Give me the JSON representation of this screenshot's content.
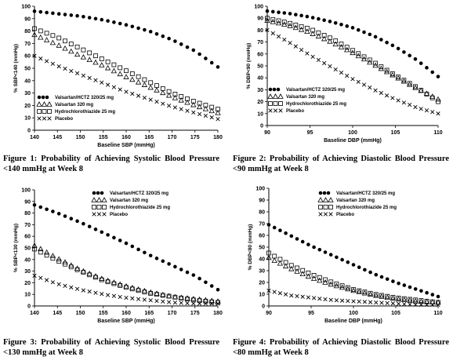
{
  "chart_data": [
    {
      "type": "scatter",
      "caption": "Figure 1: Probability of Achieving Systolic Blood Pressure <140 mmHg at Week 8",
      "xlabel": "Baseline SBP (mmHg)",
      "ylabel": "% SBP<140 (mmHg)",
      "xlim": [
        140,
        180
      ],
      "ylim": [
        0,
        100
      ],
      "x_ticks": [
        140,
        145,
        150,
        155,
        160,
        165,
        170,
        175,
        180
      ],
      "y_ticks": [
        0,
        10,
        20,
        30,
        40,
        50,
        60,
        70,
        80,
        90,
        100
      ],
      "legend_placement": "lower-left",
      "x": [
        140,
        145,
        150,
        155,
        160,
        165,
        170,
        175,
        180
      ],
      "series": [
        {
          "name": "Valsartan/HCTZ 320/25 mg",
          "marker": "dot",
          "values": [
            96,
            94,
            92,
            89,
            85,
            80,
            73,
            64,
            51
          ]
        },
        {
          "name": "Valsartan 320 mg",
          "marker": "triangle",
          "values": [
            77,
            69,
            60,
            52,
            43,
            35,
            27,
            20,
            14
          ]
        },
        {
          "name": "Hydrochlorothiazide 25 mg",
          "marker": "square",
          "values": [
            82,
            75,
            66,
            57,
            48,
            39,
            30,
            23,
            17
          ]
        },
        {
          "name": "Placebo",
          "marker": "x",
          "values": [
            60,
            52,
            45,
            38,
            31,
            25,
            19,
            14,
            9
          ]
        }
      ]
    },
    {
      "type": "scatter",
      "caption": "Figure 2: Probability of Achieving Diastolic Blood Pressure <90 mmHg at Week 8",
      "xlabel": "Baseline DBP (mmHg)",
      "ylabel": "% DBP<90 (mmHg)",
      "xlim": [
        90,
        110
      ],
      "ylim": [
        0,
        100
      ],
      "x_ticks": [
        90,
        95,
        100,
        105,
        110
      ],
      "y_ticks": [
        0,
        10,
        20,
        30,
        40,
        50,
        60,
        70,
        80,
        90,
        100
      ],
      "legend_placement": "lower-left",
      "x": [
        90,
        92.5,
        95,
        97.5,
        100,
        102.5,
        105,
        107.5,
        110
      ],
      "series": [
        {
          "name": "Valsartan/HCTZ 320/25 mg",
          "marker": "dot",
          "values": [
            96,
            94,
            91,
            87,
            82,
            75,
            66,
            55,
            41
          ]
        },
        {
          "name": "Valsartan 320 mg",
          "marker": "triangle",
          "values": [
            88,
            84,
            78,
            70,
            61,
            51,
            41,
            31,
            22
          ]
        },
        {
          "name": "Hydrochlorothiazide 25 mg",
          "marker": "square",
          "values": [
            90,
            86,
            81,
            73,
            63,
            53,
            42,
            32,
            20
          ]
        },
        {
          "name": "Placebo",
          "marker": "x",
          "values": [
            80,
            70,
            59,
            49,
            39,
            30,
            22,
            15,
            10
          ]
        }
      ]
    },
    {
      "type": "scatter",
      "caption": "Figure 3: Probability of Achieving Systolic Blood Pressure <130 mmHg at Week 8",
      "xlabel": "Baseline SBP (mmHg)",
      "ylabel": "% SBP<130 (mmHg)",
      "xlim": [
        140,
        180
      ],
      "ylim": [
        0,
        100
      ],
      "x_ticks": [
        140,
        145,
        150,
        155,
        160,
        165,
        170,
        175,
        180
      ],
      "y_ticks": [
        0,
        10,
        20,
        30,
        40,
        50,
        60,
        70,
        80,
        90,
        100
      ],
      "legend_placement": "top-right",
      "x": [
        140,
        145,
        150,
        155,
        160,
        165,
        170,
        175,
        180
      ],
      "series": [
        {
          "name": "Valsartan/HCTZ 320/25 mg",
          "marker": "dot",
          "values": [
            87,
            80,
            72,
            63,
            54,
            44,
            35,
            26,
            14
          ]
        },
        {
          "name": "Valsartan 320 mg",
          "marker": "triangle",
          "values": [
            52,
            41,
            31,
            23,
            17,
            12,
            8,
            6,
            4
          ]
        },
        {
          "name": "Hydrochlorothiazide 25 mg",
          "marker": "square",
          "values": [
            49,
            39,
            30,
            22,
            16,
            11,
            8,
            5,
            3
          ]
        },
        {
          "name": "Placebo",
          "marker": "x",
          "values": [
            26,
            19,
            14,
            10,
            7,
            5,
            3,
            2,
            2
          ]
        }
      ]
    },
    {
      "type": "scatter",
      "caption": "Figure 4: Probability of Achieving Diastolic Blood Pressure <80 mmHg at Week 8",
      "xlabel": "Baseline DBP (mmHg)",
      "ylabel": "% DBP<80 (mmHg)",
      "xlim": [
        90,
        110
      ],
      "ylim": [
        0,
        100
      ],
      "x_ticks": [
        90,
        95,
        100,
        105,
        110
      ],
      "y_ticks": [
        0,
        10,
        20,
        30,
        40,
        50,
        60,
        70,
        80,
        90,
        100
      ],
      "legend_placement": "top-right",
      "x": [
        90,
        92.5,
        95,
        97.5,
        100,
        102.5,
        105,
        107.5,
        110
      ],
      "series": [
        {
          "name": "Valsartan/HCTZ 320/25 mg",
          "marker": "dot",
          "values": [
            69,
            60,
            51,
            43,
            35,
            27,
            20,
            14,
            8
          ]
        },
        {
          "name": "Valsartan 320 mg",
          "marker": "triangle",
          "values": [
            41,
            32,
            24,
            18,
            13,
            9,
            6,
            4,
            3
          ]
        },
        {
          "name": "Hydrochlorothiazide 25 mg",
          "marker": "square",
          "values": [
            45,
            35,
            27,
            20,
            14,
            10,
            7,
            5,
            3
          ]
        },
        {
          "name": "Placebo",
          "marker": "x",
          "values": [
            13,
            9,
            7,
            5,
            4,
            3,
            2,
            1,
            1
          ]
        }
      ]
    }
  ]
}
